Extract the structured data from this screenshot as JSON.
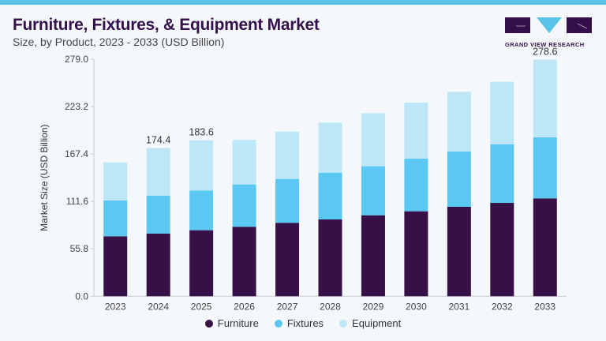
{
  "header": {
    "title": "Furniture, Fixtures, & Equipment Market",
    "subtitle": "Size, by Product, 2023 - 2033 (USD Billion)",
    "logo_text": "GRAND VIEW RESEARCH"
  },
  "colors": {
    "Furniture": "#371047",
    "Fixtures": "#5bc8f3",
    "Equipment": "#bde7f8",
    "accent": "#5bc3ea"
  },
  "chart_data": {
    "type": "bar",
    "stacked": true,
    "title": "Furniture, Fixtures, & Equipment Market",
    "subtitle": "Size, by Product, 2023 - 2033 (USD Billion)",
    "xlabel": "",
    "ylabel": "Market Size (USD Billion)",
    "ylim": [
      0,
      279.0
    ],
    "yticks": [
      "0.0",
      "55.8",
      "111.6",
      "167.4",
      "223.2",
      "279.0"
    ],
    "categories": [
      "2023",
      "2024",
      "2025",
      "2026",
      "2027",
      "2028",
      "2029",
      "2030",
      "2031",
      "2032",
      "2033"
    ],
    "series": [
      {
        "name": "Furniture",
        "values": [
          70.6,
          73.7,
          77.7,
          81.8,
          86.4,
          90.4,
          95.3,
          100.0,
          105.3,
          109.9,
          115.2
        ]
      },
      {
        "name": "Fixtures",
        "values": [
          42.1,
          44.6,
          46.8,
          49.8,
          51.7,
          54.8,
          57.7,
          62.0,
          65.0,
          68.8,
          71.8
        ]
      },
      {
        "name": "Equipment",
        "values": [
          44.9,
          56.1,
          59.1,
          52.4,
          55.7,
          59.2,
          62.5,
          65.9,
          70.3,
          73.8,
          91.6
        ]
      }
    ],
    "data_labels": {
      "2024": "174.4",
      "2025": "183.6",
      "2033": "278.6"
    },
    "grid": false,
    "legend": "bottom-center"
  }
}
